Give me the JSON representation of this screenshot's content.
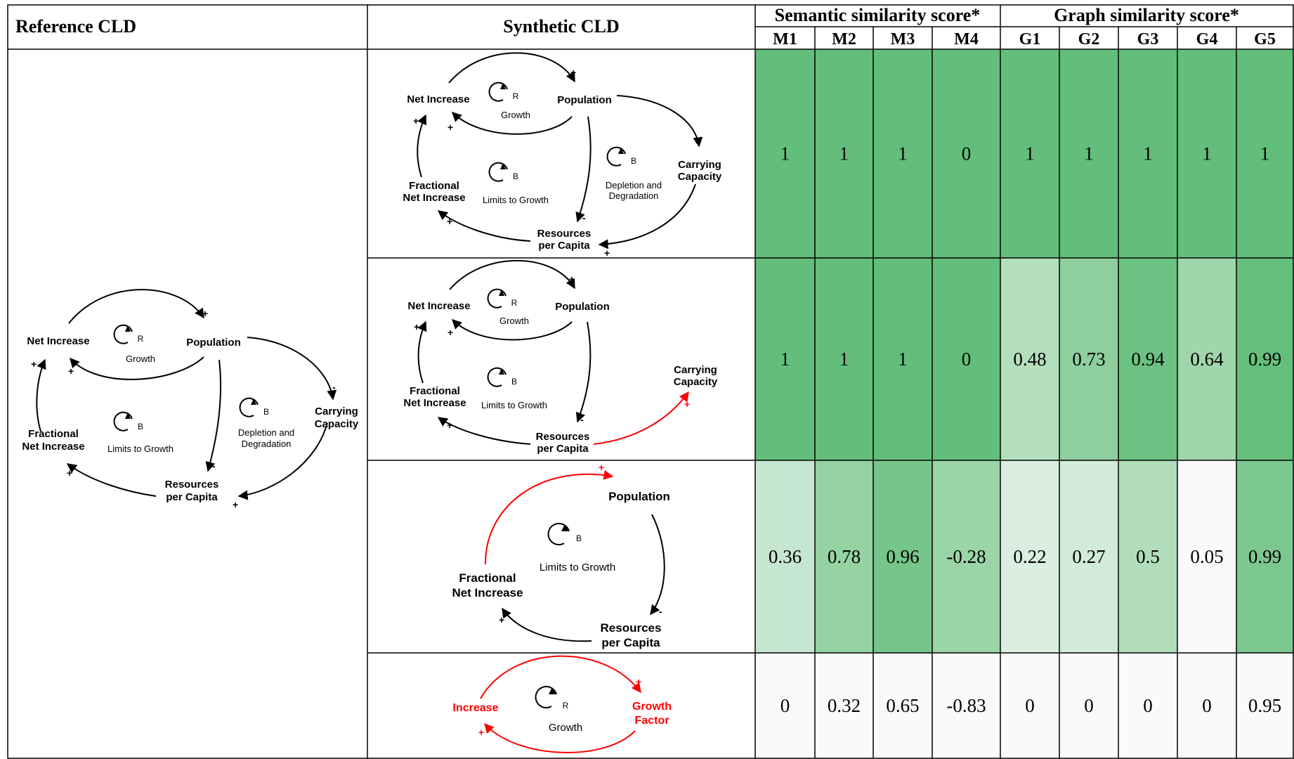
{
  "header": {
    "reference": "Reference CLD",
    "synthetic": "Synthetic CLD",
    "semantic_group": "Semantic similarity score*",
    "graph_group": "Graph similarity score*",
    "metrics": [
      "M1",
      "M2",
      "M3",
      "M4",
      "G1",
      "G2",
      "G3",
      "G4",
      "G5"
    ]
  },
  "rows": [
    {
      "scores": [
        "1",
        "1",
        "1",
        "0",
        "1",
        "1",
        "1",
        "1",
        "1"
      ],
      "colors": [
        "#63be7b",
        "#63be7b",
        "#63be7b",
        "#63be7b",
        "#63be7b",
        "#63be7b",
        "#63be7b",
        "#63be7b",
        "#63be7b"
      ]
    },
    {
      "scores": [
        "1",
        "1",
        "1",
        "0",
        "0.48",
        "0.73",
        "0.94",
        "0.64",
        "0.99"
      ],
      "colors": [
        "#63be7b",
        "#63be7b",
        "#63be7b",
        "#63be7b",
        "#b4dfbd",
        "#8ecf9d",
        "#6cc282",
        "#a0d6ac",
        "#65bf7c"
      ]
    },
    {
      "scores": [
        "0.36",
        "0.78",
        "0.96",
        "-0.28",
        "0.22",
        "0.27",
        "0.5",
        "0.05",
        "0.99"
      ],
      "colors": [
        "#c6e7cf",
        "#95d3a3",
        "#76c58a",
        "#9ad5a8",
        "#daefdf",
        "#d2ebd8",
        "#b1ddbb",
        "#f8fafb",
        "#7dc890"
      ]
    },
    {
      "scores": [
        "0",
        "0.32",
        "0.65",
        "-0.83",
        "0",
        "0",
        "0",
        "0",
        "0.95"
      ],
      "colors": [
        "#f8fafb",
        "#f8fafb",
        "#f8fafb",
        "#f8fafb",
        "#f8fafb",
        "#f8fafb",
        "#f8fafb",
        "#f8fafb",
        "#f8fafb"
      ]
    }
  ],
  "diagram_colors": {
    "link": "#000000",
    "highlight": "#ff0000"
  },
  "cld": {
    "net_increase": "Net Increase",
    "population": "Population",
    "carrying_1": "Carrying",
    "carrying_2": "Capacity",
    "fractional_1": "Fractional",
    "fractional_2": "Net Increase",
    "resources_1": "Resources",
    "resources_2": "per Capita",
    "growth": "Growth",
    "limits": "Limits to Growth",
    "depletion_1": "Depletion and",
    "depletion_2": "Degradation",
    "increase": "Increase",
    "growth_factor_1": "Growth",
    "growth_factor_2": "Factor",
    "r": "R",
    "b": "B",
    "plus": "+",
    "minus": "-"
  }
}
